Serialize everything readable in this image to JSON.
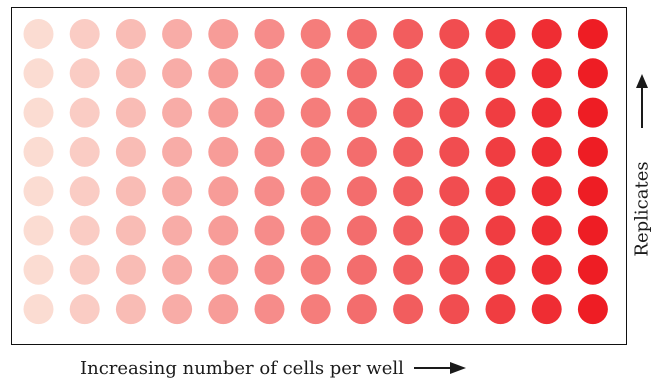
{
  "figure": {
    "x_caption": "Increasing number of cells per well",
    "y_caption": "Replicates"
  },
  "plate": {
    "rows": 8,
    "columns": 13,
    "color_start": "#fbdcd2",
    "color_end": "#ee1d24"
  },
  "colors": {
    "frame": "#111111",
    "text": "#1a1a1a"
  },
  "icons": {
    "x_arrow": "arrow-right-icon",
    "y_arrow": "arrow-up-icon"
  }
}
